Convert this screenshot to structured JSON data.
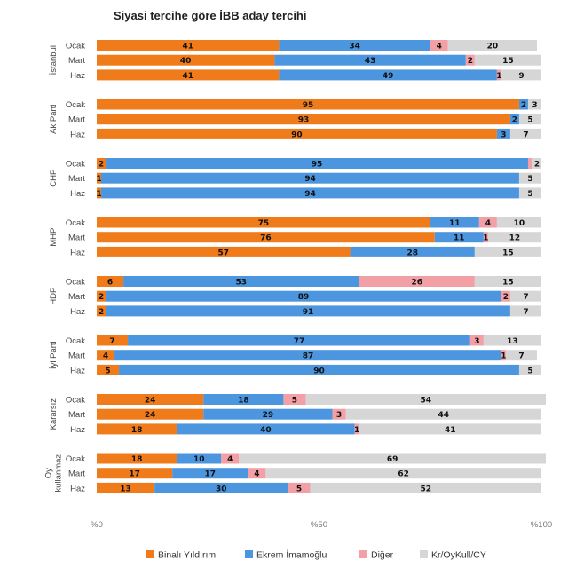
{
  "chart_data": {
    "type": "bar",
    "orientation": "horizontal",
    "stacked": true,
    "title": "Siyasi tercihe göre İBB aday tercihi",
    "xlim": [
      0,
      100
    ],
    "xticks": [
      {
        "value": 0,
        "label": "%0"
      },
      {
        "value": 50,
        "label": "%50"
      },
      {
        "value": 100,
        "label": "%100"
      }
    ],
    "series": [
      {
        "name": "Binalı Yıldırım",
        "color": "#F07B1A"
      },
      {
        "name": "Ekrem İmamoğlu",
        "color": "#4C96E0"
      },
      {
        "name": "Diğer",
        "color": "#F2A0A6"
      },
      {
        "name": "Kr/OyKull/CY",
        "color": "#D6D6D6"
      }
    ],
    "groups": [
      {
        "name": "İstanbul",
        "label_lines": [
          "İstanbul"
        ],
        "rows": [
          {
            "label": "Ocak",
            "values": [
              41,
              34,
              4,
              20
            ],
            "labels": [
              "41",
              "34",
              "4",
              "20"
            ]
          },
          {
            "label": "Mart",
            "values": [
              40,
              43,
              2,
              15
            ],
            "labels": [
              "40",
              "43",
              "2",
              "15"
            ]
          },
          {
            "label": "Haz",
            "values": [
              41,
              49,
              1,
              9
            ],
            "labels": [
              "41",
              "49",
              "1",
              "9"
            ]
          }
        ]
      },
      {
        "name": "Ak Parti",
        "label_lines": [
          "Ak Parti"
        ],
        "rows": [
          {
            "label": "Ocak",
            "values": [
              95,
              2,
              0,
              3
            ],
            "labels": [
              "95",
              "2",
              "",
              "3"
            ]
          },
          {
            "label": "Mart",
            "values": [
              93,
              2,
              0,
              5
            ],
            "labels": [
              "93",
              "2",
              "",
              "5"
            ]
          },
          {
            "label": "Haz",
            "values": [
              90,
              3,
              0,
              7
            ],
            "labels": [
              "90",
              "3",
              "",
              "7"
            ]
          }
        ]
      },
      {
        "name": "CHP",
        "label_lines": [
          "CHP"
        ],
        "rows": [
          {
            "label": "Ocak",
            "values": [
              2,
              95,
              1,
              2
            ],
            "labels": [
              "2",
              "95",
              "",
              "2"
            ]
          },
          {
            "label": "Mart",
            "values": [
              1,
              94,
              0,
              5
            ],
            "labels": [
              "1",
              "94",
              "",
              "5"
            ]
          },
          {
            "label": "Haz",
            "values": [
              1,
              94,
              0,
              5
            ],
            "labels": [
              "1",
              "94",
              "",
              "5"
            ]
          }
        ]
      },
      {
        "name": "MHP",
        "label_lines": [
          "MHP"
        ],
        "rows": [
          {
            "label": "Ocak",
            "values": [
              75,
              11,
              4,
              10
            ],
            "labels": [
              "75",
              "11",
              "4",
              "10"
            ]
          },
          {
            "label": "Mart",
            "values": [
              76,
              11,
              1,
              12
            ],
            "labels": [
              "76",
              "11",
              "1",
              "12"
            ]
          },
          {
            "label": "Haz",
            "values": [
              57,
              28,
              0,
              15
            ],
            "labels": [
              "57",
              "28",
              "",
              "15"
            ]
          }
        ]
      },
      {
        "name": "HDP",
        "label_lines": [
          "HDP"
        ],
        "rows": [
          {
            "label": "Ocak",
            "values": [
              6,
              53,
              26,
              15
            ],
            "labels": [
              "6",
              "53",
              "26",
              "15"
            ]
          },
          {
            "label": "Mart",
            "values": [
              2,
              89,
              2,
              7
            ],
            "labels": [
              "2",
              "89",
              "2",
              "7"
            ]
          },
          {
            "label": "Haz",
            "values": [
              2,
              91,
              0,
              7
            ],
            "labels": [
              "2",
              "91",
              "",
              "7"
            ]
          }
        ]
      },
      {
        "name": "İyi Parti",
        "label_lines": [
          "İyi Parti"
        ],
        "rows": [
          {
            "label": "Ocak",
            "values": [
              7,
              77,
              3,
              13
            ],
            "labels": [
              "7",
              "77",
              "3",
              "13"
            ]
          },
          {
            "label": "Mart",
            "values": [
              4,
              87,
              1,
              7
            ],
            "labels": [
              "4",
              "87",
              "1",
              "7"
            ]
          },
          {
            "label": "Haz",
            "values": [
              5,
              90,
              0,
              5
            ],
            "labels": [
              "5",
              "90",
              "",
              "5"
            ]
          }
        ]
      },
      {
        "name": "Kararsız",
        "label_lines": [
          "Kararsız"
        ],
        "rows": [
          {
            "label": "Ocak",
            "values": [
              24,
              18,
              5,
              54
            ],
            "labels": [
              "24",
              "18",
              "5",
              "54"
            ]
          },
          {
            "label": "Mart",
            "values": [
              24,
              29,
              3,
              44
            ],
            "labels": [
              "24",
              "29",
              "3",
              "44"
            ]
          },
          {
            "label": "Haz",
            "values": [
              18,
              40,
              1,
              41
            ],
            "labels": [
              "18",
              "40",
              "1",
              "41"
            ]
          }
        ]
      },
      {
        "name": "Oy kullanmaz",
        "label_lines": [
          "Oy",
          "kullanmaz"
        ],
        "rows": [
          {
            "label": "Ocak",
            "values": [
              18,
              10,
              4,
              69
            ],
            "labels": [
              "18",
              "10",
              "4",
              "69"
            ]
          },
          {
            "label": "Mart",
            "values": [
              17,
              17,
              4,
              62
            ],
            "labels": [
              "17",
              "17",
              "4",
              "62"
            ]
          },
          {
            "label": "Haz",
            "values": [
              13,
              30,
              5,
              52
            ],
            "labels": [
              "13",
              "30",
              "5",
              "52"
            ]
          }
        ]
      }
    ]
  }
}
